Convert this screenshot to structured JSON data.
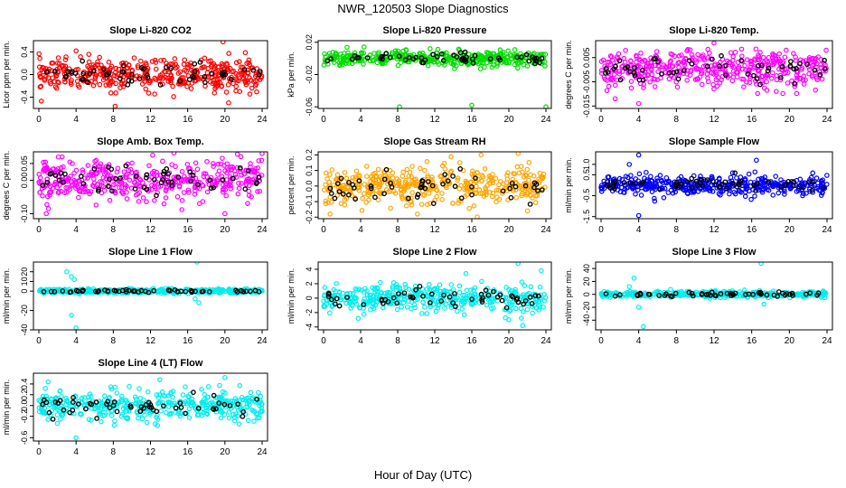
{
  "figure": {
    "title": "NWR_120503  Slope Diagnostics",
    "xlabel": "Hour of Day (UTC)"
  },
  "chart_data": [
    {
      "type": "scatter",
      "title": "Slope Li-820 CO2",
      "ylabel": "Licor ppm per min.",
      "xlim": [
        0,
        24
      ],
      "xticks": [
        "0",
        "4",
        "8",
        "12",
        "16",
        "20",
        "24"
      ],
      "ylim": [
        -0.6,
        0.6
      ],
      "yticks": [
        -0.4,
        0.0,
        0.4
      ],
      "ytick_labels": [
        "-0.4",
        "0.0",
        "0.4"
      ],
      "color": "#ff0000",
      "band": 0.18,
      "outliers": [
        [
          19.8,
          0.58
        ],
        [
          8.2,
          -0.56
        ],
        [
          20.4,
          -0.5
        ],
        [
          4.0,
          0.42
        ]
      ]
    },
    {
      "type": "scatter",
      "title": "Slope Li-820 Pressure",
      "ylabel": "kPa per min.",
      "xlim": [
        0,
        24
      ],
      "xticks": [
        "0",
        "4",
        "8",
        "12",
        "16",
        "20",
        "24"
      ],
      "ylim": [
        -0.062,
        0.022
      ],
      "yticks": [
        -0.06,
        -0.02,
        0.02
      ],
      "ytick_labels": [
        "-0.06",
        "-0.02",
        "0.02"
      ],
      "color": "#00dd00",
      "band": 0.006,
      "outliers": [
        [
          8.2,
          -0.06
        ],
        [
          16.0,
          -0.058
        ],
        [
          24.0,
          -0.06
        ],
        [
          11.5,
          0.012
        ]
      ]
    },
    {
      "type": "scatter",
      "title": "Slope Li-820 Temp.",
      "ylabel": "degrees C per min.",
      "xlim": [
        0,
        24
      ],
      "xticks": [
        "0",
        "4",
        "8",
        "12",
        "16",
        "20",
        "24"
      ],
      "ylim": [
        -0.016,
        0.012
      ],
      "yticks": [
        -0.015,
        -0.005,
        0.005
      ],
      "ytick_labels": [
        "-0.015",
        "-0.005",
        "0.005"
      ],
      "color": "#ff00ff",
      "band": 0.005,
      "outliers": [
        [
          12.0,
          0.011
        ],
        [
          4.0,
          -0.014
        ],
        [
          1.5,
          -0.012
        ]
      ]
    },
    {
      "type": "scatter",
      "title": "Slope Amb. Box Temp.",
      "ylabel": "degrees C per min.",
      "xlim": [
        0,
        24
      ],
      "xticks": [
        "0",
        "4",
        "8",
        "12",
        "16",
        "20",
        "24"
      ],
      "ylim": [
        -0.115,
        0.085
      ],
      "yticks": [
        -0.1,
        0.0,
        0.05
      ],
      "ytick_labels": [
        "-0.10",
        "0.00",
        "0.05"
      ],
      "color": "#ff00ff",
      "band": 0.04,
      "outliers": [
        [
          24.0,
          0.08
        ],
        [
          2.5,
          0.07
        ],
        [
          20.0,
          -0.1
        ]
      ]
    },
    {
      "type": "scatter",
      "title": "Slope Gas Stream RH",
      "ylabel": "percent per min.",
      "xlim": [
        0,
        24
      ],
      "xticks": [
        "0",
        "4",
        "8",
        "12",
        "16",
        "20",
        "24"
      ],
      "ylim": [
        -0.21,
        0.22
      ],
      "yticks": [
        -0.2,
        -0.1,
        0.0,
        0.1,
        0.2
      ],
      "ytick_labels": [
        "-0.2",
        "-0.1",
        "0.0",
        "0.1",
        "0.2"
      ],
      "color": "#ffa500",
      "band": 0.08,
      "outliers": [
        [
          21.0,
          0.21
        ],
        [
          17.0,
          0.2
        ],
        [
          0.7,
          -0.18
        ],
        [
          22.0,
          -0.16
        ]
      ]
    },
    {
      "type": "scatter",
      "title": "Slope Sample Flow",
      "ylabel": "ml/min per min.",
      "xlim": [
        0,
        24
      ],
      "xticks": [
        "0",
        "4",
        "8",
        "12",
        "16",
        "20",
        "24"
      ],
      "ylim": [
        -1.6,
        1.6
      ],
      "yticks": [
        -1.5,
        -0.5,
        0.5,
        1.0
      ],
      "ytick_labels": [
        "-1.5",
        "-0.5",
        "0.5",
        "1.0"
      ],
      "color": "#0000ff",
      "band": 0.3,
      "outliers": [
        [
          4.0,
          1.45
        ],
        [
          4.0,
          -1.45
        ],
        [
          16.5,
          1.2
        ],
        [
          3.0,
          1.0
        ]
      ]
    },
    {
      "type": "scatter",
      "title": "Slope Line 1 Flow",
      "ylabel": "ml/min per min.",
      "xlim": [
        0,
        24
      ],
      "xticks": [
        "0",
        "4",
        "8",
        "12",
        "16",
        "20",
        "24"
      ],
      "ylim": [
        -40,
        30
      ],
      "yticks": [
        -40,
        -20,
        0,
        10,
        20
      ],
      "ytick_labels": [
        "-40",
        "-20",
        "0",
        "10",
        "20"
      ],
      "color": "#00eeee",
      "band": 1.5,
      "outliers": [
        [
          17.0,
          30.0
        ],
        [
          3.0,
          20.0
        ],
        [
          3.5,
          15.0
        ],
        [
          4.0,
          -38.0
        ],
        [
          3.5,
          -25.0
        ],
        [
          17.2,
          -12.0
        ],
        [
          16.8,
          -8.0
        ],
        [
          3.8,
          12.0
        ]
      ]
    },
    {
      "type": "scatter",
      "title": "Slope Line 2 Flow",
      "ylabel": "ml/min per min.",
      "xlim": [
        0,
        24
      ],
      "xticks": [
        "0",
        "4",
        "8",
        "12",
        "16",
        "20",
        "24"
      ],
      "ylim": [
        -4.4,
        5.0
      ],
      "yticks": [
        -4,
        -2,
        0,
        2,
        4
      ],
      "ytick_labels": [
        "-4",
        "-2",
        "0",
        "2",
        "4"
      ],
      "color": "#00eeee",
      "band": 1.2,
      "outliers": [
        [
          21.0,
          4.8
        ],
        [
          23.5,
          3.8
        ],
        [
          21.5,
          -3.8
        ],
        [
          20.0,
          -3.0
        ]
      ]
    },
    {
      "type": "scatter",
      "title": "Slope Line 3 Flow",
      "ylabel": "ml/min per min.",
      "xlim": [
        0,
        24
      ],
      "xticks": [
        "0",
        "4",
        "8",
        "12",
        "16",
        "20",
        "24"
      ],
      "ylim": [
        -55,
        50
      ],
      "yticks": [
        -40,
        -20,
        0,
        20,
        40
      ],
      "ytick_labels": [
        "-40",
        "-20",
        "0",
        "20",
        "40"
      ],
      "color": "#00eeee",
      "band": 3.0,
      "outliers": [
        [
          17.0,
          48.0
        ],
        [
          3.5,
          25.0
        ],
        [
          4.0,
          -20.0
        ],
        [
          4.5,
          -50.0
        ],
        [
          17.3,
          -15.0
        ],
        [
          3.0,
          12.0
        ]
      ]
    },
    {
      "type": "scatter",
      "title": "Slope Line 4 (LT) Flow",
      "ylabel": "ml/min per min.",
      "xlim": [
        0,
        24
      ],
      "xticks": [
        "0",
        "4",
        "8",
        "12",
        "16",
        "20",
        "24"
      ],
      "ylim": [
        -0.66,
        0.6
      ],
      "yticks": [
        -0.6,
        -0.2,
        0.0,
        0.2,
        0.4
      ],
      "ytick_labels": [
        "-0.6",
        "-0.2",
        "0.0",
        "0.2",
        "0.4"
      ],
      "color": "#00eeee",
      "band": 0.18,
      "outliers": [
        [
          4.0,
          -0.6
        ],
        [
          20.0,
          0.52
        ],
        [
          13.0,
          0.48
        ],
        [
          1.0,
          0.44
        ]
      ]
    }
  ]
}
